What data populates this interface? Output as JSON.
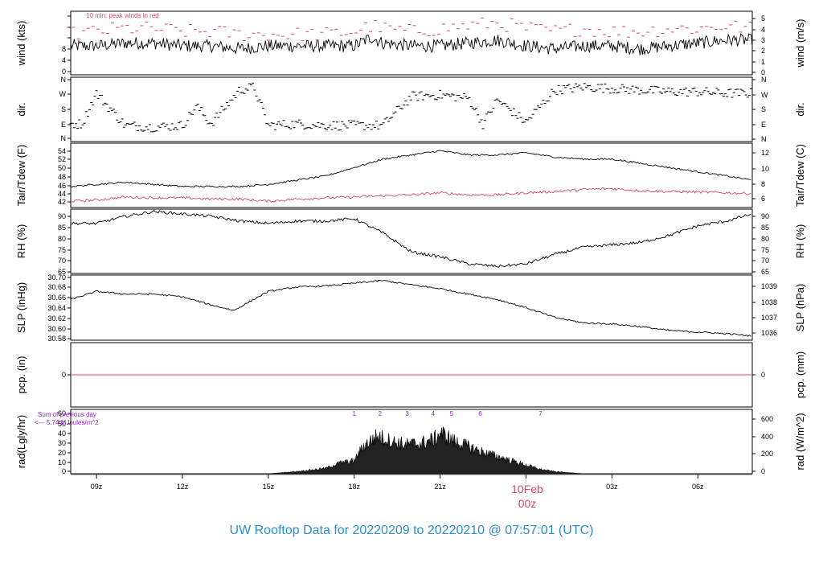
{
  "title": "UW Rooftop Data for 20220209  to  20220210 @ 07:57:01  (UTC)",
  "colors": {
    "title": "#2a8fd0",
    "red": "#d9466a",
    "purple": "#9b1fd6",
    "line": "#000000"
  },
  "time_axis": {
    "labels": [
      "09z",
      "12z",
      "15z",
      "18z",
      "21z",
      "00z",
      "03z",
      "06z"
    ],
    "hours": [
      9,
      12,
      15,
      18,
      21,
      24,
      27,
      30
    ],
    "range_hours": [
      8.1,
      31.9
    ],
    "date_label": "10Feb",
    "date_sub": "00z"
  },
  "panels": {
    "wind": {
      "ylabel_left": "wind (kts)",
      "ylabel_right": "wind (m/s)",
      "left_ticks": [
        "0",
        "2",
        "4",
        "6",
        "8",
        "10"
      ],
      "right_ticks": [
        "0",
        "1",
        "2",
        "3",
        "4",
        "5"
      ],
      "ylim": [
        0,
        11
      ],
      "note": "10 min. peak winds in red"
    },
    "dir": {
      "ylabel_left": "dir.",
      "ylabel_right": "dir.",
      "ticks": [
        "N",
        "E",
        "S",
        "W",
        "N"
      ]
    },
    "temp": {
      "ylabel_left": "Tair/Tdew (F)",
      "ylabel_right": "Tair/Tdew (C)",
      "left_ticks": [
        "42",
        "44",
        "46",
        "48",
        "50",
        "52",
        "54"
      ],
      "right_ticks": [
        "6",
        "8",
        "10",
        "12"
      ],
      "ylim": [
        40.5,
        55.8
      ]
    },
    "rh": {
      "ylabel_left": "RH (%)",
      "ylabel_right": "RH (%)",
      "left_ticks": [
        "65",
        "70",
        "75",
        "80",
        "85",
        "90"
      ],
      "right_ticks": [
        "65",
        "70",
        "75",
        "80",
        "85",
        "90"
      ],
      "ylim": [
        64,
        91
      ]
    },
    "slp": {
      "ylabel_left": "SLP (inHg)",
      "ylabel_right": "SLP (hPa)",
      "left_ticks": [
        "30.58",
        "30.60",
        "30.62",
        "30.64",
        "30.66",
        "30.68",
        "30.70"
      ],
      "right_ticks": [
        "1036",
        "1037",
        "1038",
        "1039"
      ],
      "ylim": [
        30.58,
        30.7
      ]
    },
    "pcp": {
      "ylabel_left": "pcp. (in)",
      "ylabel_right": "pcp. (mm)",
      "left_ticks": [
        "0"
      ],
      "right_ticks": [
        "0"
      ]
    },
    "rad": {
      "ylabel_left": "rad(Lgly/hr)",
      "ylabel_right": "rad (W/m^2)",
      "left_ticks": [
        "0",
        "10",
        "20",
        "30",
        "40",
        "50",
        "60"
      ],
      "right_ticks": [
        "0",
        "200",
        "400",
        "600"
      ],
      "ylim": [
        0,
        60
      ],
      "note_line1": "Sum of previous day",
      "note_line2": "<--- 5.74 MJoules/m^2",
      "hour_marks": [
        "1",
        "2",
        "3",
        "4",
        "5",
        "6",
        "7"
      ]
    }
  },
  "chart_data": [
    {
      "type": "line",
      "panel": "wind",
      "ylabel": "wind (kts)",
      "x": [
        8.1,
        9,
        10,
        11,
        12,
        13,
        14,
        15,
        16,
        17,
        18,
        18.6,
        19,
        20,
        21,
        22,
        23,
        24,
        25,
        26,
        27,
        28,
        29,
        30,
        31,
        31.9
      ],
      "series": [
        {
          "values": [
            5,
            5,
            5.5,
            5.5,
            5,
            5,
            4.5,
            5,
            5,
            5,
            5,
            6.5,
            5.5,
            5,
            5,
            5.5,
            6,
            5,
            4.5,
            5,
            5,
            4.5,
            5,
            5.5,
            6,
            6
          ]
        },
        {
          "values": [
            7,
            7.5,
            8,
            8,
            7.5,
            7.5,
            7,
            7,
            7,
            7,
            7.5,
            8.5,
            8,
            7.5,
            8,
            8.5,
            9,
            8,
            7.5,
            8,
            7.5,
            7.5,
            8,
            8,
            8.5,
            8
          ]
        }
      ]
    },
    {
      "type": "scatter",
      "panel": "dir",
      "ylabel": "dir.",
      "x": [
        8.5,
        9,
        10,
        11,
        12,
        12.5,
        13,
        14,
        14.5,
        15,
        16,
        17,
        18,
        19,
        20,
        21,
        22,
        22.5,
        23,
        24,
        25,
        26,
        27,
        28,
        29,
        30,
        31
      ],
      "series": [
        {
          "values": [
            90,
            280,
            80,
            70,
            80,
            200,
            90,
            300,
            320,
            80,
            90,
            80,
            80,
            80,
            260,
            270,
            250,
            90,
            240,
            100,
            300,
            320,
            310,
            300,
            290,
            290,
            280
          ]
        }
      ]
    },
    {
      "type": "line",
      "panel": "temp",
      "ylabel": "Tair/Tdew (F)",
      "x": [
        8.1,
        9,
        10,
        11,
        12,
        13,
        14,
        15,
        16,
        17,
        18,
        19,
        20,
        21,
        22,
        23,
        24,
        25,
        26,
        27,
        28,
        29,
        30,
        31,
        31.9
      ],
      "series": [
        {
          "values": [
            45.5,
            46,
            46.5,
            46,
            45.5,
            45.5,
            45.5,
            46,
            47,
            48,
            50,
            52,
            53,
            54,
            53,
            53,
            53.5,
            52.5,
            52,
            52,
            51,
            50,
            49,
            48,
            47
          ]
        },
        {
          "values": [
            42,
            42.3,
            43,
            42.8,
            42.8,
            42.5,
            42.5,
            42,
            42.5,
            42.8,
            43,
            43.3,
            43.5,
            44,
            43.5,
            43.5,
            44,
            44.3,
            44.8,
            45,
            44.5,
            44.3,
            44.2,
            44,
            43.8
          ]
        }
      ]
    },
    {
      "type": "line",
      "panel": "rh",
      "ylabel": "RH (%)",
      "x": [
        8.1,
        9,
        10,
        11,
        12,
        13,
        14,
        15,
        16,
        17,
        18,
        19,
        20,
        21,
        22,
        23,
        24,
        25,
        26,
        27,
        28,
        29,
        30,
        31,
        31.9
      ],
      "series": [
        {
          "values": [
            85,
            85,
            88,
            90,
            89,
            88,
            86,
            85,
            86,
            86,
            87,
            81,
            73,
            71,
            68,
            67,
            68,
            72,
            75,
            76,
            77,
            80,
            84,
            86,
            89
          ]
        }
      ]
    },
    {
      "type": "line",
      "panel": "slp",
      "ylabel": "SLP (inHg)",
      "x": [
        8.1,
        9,
        10,
        11,
        12,
        13,
        13.8,
        15,
        16,
        17,
        18,
        19,
        20,
        21,
        22,
        23,
        24,
        25,
        26,
        27,
        28,
        29,
        30,
        31,
        31.9
      ],
      "series": [
        {
          "values": [
            30.655,
            30.67,
            30.665,
            30.665,
            30.66,
            30.645,
            30.635,
            30.67,
            30.678,
            30.68,
            30.685,
            30.69,
            30.682,
            30.675,
            30.665,
            30.655,
            30.64,
            30.622,
            30.612,
            30.61,
            30.605,
            30.598,
            30.595,
            30.592,
            30.588
          ]
        }
      ]
    },
    {
      "type": "line",
      "panel": "pcp",
      "ylabel": "pcp. (in)",
      "x": [
        8.1,
        31.9
      ],
      "series": [
        {
          "values": [
            0,
            0
          ]
        }
      ]
    },
    {
      "type": "area",
      "panel": "rad",
      "ylabel": "rad(Lgly/hr)",
      "x": [
        15,
        16,
        17,
        17.5,
        18,
        18.3,
        18.8,
        19.3,
        19.8,
        20.3,
        20.8,
        21,
        21.5,
        22,
        22.5,
        23,
        23.5,
        24,
        24.5,
        25,
        26
      ],
      "series": [
        {
          "values": [
            0,
            2,
            5,
            10,
            12,
            25,
            35,
            30,
            27,
            28,
            32,
            38,
            30,
            25,
            20,
            16,
            12,
            8,
            4,
            2,
            0
          ]
        }
      ]
    }
  ]
}
